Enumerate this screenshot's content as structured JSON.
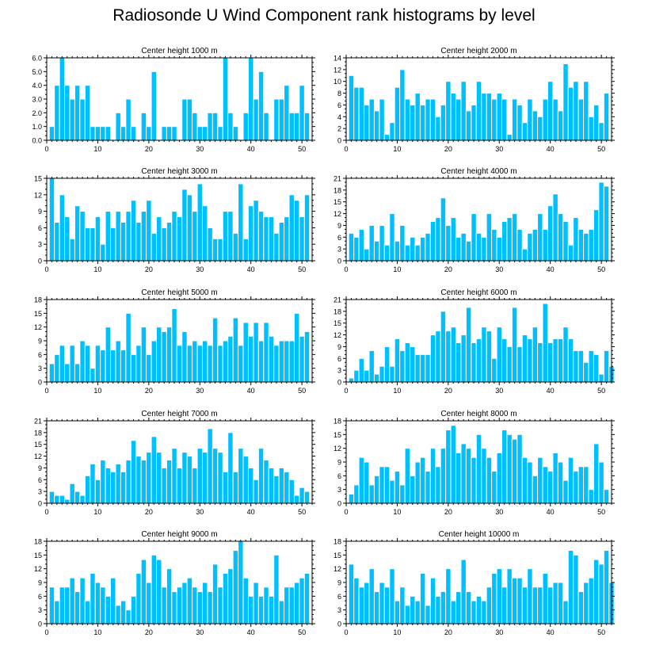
{
  "title": "Radiosonde U Wind Component rank histograms by level",
  "colors": {
    "bar": "#00BFFF",
    "bar_edge": "#ffffff",
    "axis": "#000000"
  },
  "chart_data": [
    {
      "type": "bar",
      "title": "Center height 1000 m",
      "xlim": [
        0,
        52
      ],
      "ylim": [
        0,
        6
      ],
      "yticks": [
        "0.0",
        "1.0",
        "2.0",
        "3.0",
        "4.0",
        "5.0",
        "6.0"
      ],
      "xticks": [
        0,
        10,
        20,
        30,
        40,
        50
      ],
      "values": [
        1,
        4,
        6,
        4,
        3,
        4,
        3,
        4,
        1,
        1,
        1,
        1,
        0,
        2,
        1,
        3,
        1,
        0,
        2,
        1,
        5,
        0,
        1,
        1,
        1,
        0,
        3,
        3,
        2,
        1,
        1,
        2,
        2,
        1,
        6,
        2,
        1,
        0,
        2,
        6,
        3,
        5,
        2,
        0,
        3,
        3,
        4,
        2,
        2,
        4,
        2
      ]
    },
    {
      "type": "bar",
      "title": "Center height 2000 m",
      "xlim": [
        0,
        52
      ],
      "ylim": [
        0,
        14
      ],
      "yticks": [
        "0",
        "2",
        "4",
        "6",
        "8",
        "10",
        "12",
        "14"
      ],
      "xticks": [
        0,
        10,
        20,
        30,
        40,
        50
      ],
      "values": [
        11,
        9,
        9,
        6,
        7,
        5,
        7,
        1,
        3,
        9,
        12,
        7,
        6,
        8,
        6,
        7,
        7,
        4,
        6,
        10,
        8,
        7,
        10,
        5,
        6,
        10,
        8,
        8,
        7,
        8,
        7,
        1,
        7,
        6,
        3,
        7,
        5,
        4,
        7,
        10,
        7,
        5,
        13,
        9,
        10,
        7,
        10,
        4,
        6,
        3,
        8
      ]
    },
    {
      "type": "bar",
      "title": "Center height 3000 m",
      "xlim": [
        0,
        52
      ],
      "ylim": [
        0,
        15
      ],
      "yticks": [
        "0",
        "3",
        "6",
        "9",
        "12",
        "15"
      ],
      "xticks": [
        0,
        10,
        20,
        30,
        40,
        50
      ],
      "values": [
        15,
        7,
        12,
        8,
        4,
        10,
        9,
        6,
        6,
        8,
        3,
        9,
        6,
        9,
        7,
        9,
        11,
        7,
        9,
        11,
        5,
        8,
        6,
        7,
        9,
        8,
        13,
        12,
        9,
        14,
        10,
        6,
        4,
        4,
        9,
        9,
        5,
        14,
        4,
        10,
        11,
        9,
        8,
        8,
        5,
        7,
        8,
        12,
        11,
        8,
        12
      ]
    },
    {
      "type": "bar",
      "title": "Center height 4000 m",
      "xlim": [
        0,
        52
      ],
      "ylim": [
        0,
        21
      ],
      "yticks": [
        "0",
        "3",
        "6",
        "9",
        "12",
        "15",
        "18",
        "21"
      ],
      "xticks": [
        0,
        10,
        20,
        30,
        40,
        50
      ],
      "values": [
        7,
        6,
        8,
        3,
        9,
        5,
        9,
        4,
        12,
        5,
        9,
        4,
        6,
        4,
        6,
        7,
        10,
        11,
        16,
        9,
        11,
        6,
        7,
        5,
        12,
        7,
        6,
        12,
        8,
        6,
        10,
        11,
        12,
        8,
        3,
        7,
        8,
        12,
        8,
        14,
        17,
        12,
        10,
        4,
        11,
        8,
        7,
        8,
        13,
        20,
        19
      ]
    },
    {
      "type": "bar",
      "title": "Center height 5000 m",
      "xlim": [
        0,
        52
      ],
      "ylim": [
        0,
        18
      ],
      "yticks": [
        "0",
        "3",
        "6",
        "9",
        "12",
        "15",
        "18"
      ],
      "xticks": [
        0,
        10,
        20,
        30,
        40,
        50
      ],
      "values": [
        4,
        6,
        8,
        4,
        8,
        4,
        9,
        8,
        3,
        8,
        7,
        12,
        7,
        9,
        7,
        15,
        6,
        8,
        12,
        6,
        9,
        12,
        11,
        12,
        16,
        8,
        11,
        8,
        9,
        8,
        9,
        8,
        14,
        8,
        9,
        10,
        14,
        8,
        13,
        10,
        13,
        9,
        13,
        10,
        8,
        9,
        9,
        9,
        15,
        10,
        11
      ]
    },
    {
      "type": "bar",
      "title": "Center height 6000 m",
      "xlim": [
        0,
        52
      ],
      "ylim": [
        0,
        21
      ],
      "yticks": [
        "0",
        "3",
        "6",
        "9",
        "12",
        "15",
        "18",
        "21"
      ],
      "xticks": [
        0,
        10,
        20,
        30,
        40,
        50
      ],
      "values": [
        1,
        3,
        6,
        3,
        8,
        2,
        4,
        9,
        4,
        11,
        8,
        10,
        9,
        7,
        7,
        7,
        12,
        13,
        18,
        13,
        14,
        10,
        12,
        19,
        10,
        11,
        14,
        13,
        6,
        14,
        11,
        9,
        19,
        9,
        12,
        11,
        14,
        10,
        20,
        10,
        11,
        11,
        14,
        11,
        8,
        8,
        5,
        8,
        7,
        2,
        8,
        4
      ]
    },
    {
      "type": "bar",
      "title": "Center height 7000 m",
      "xlim": [
        0,
        52
      ],
      "ylim": [
        0,
        21
      ],
      "yticks": [
        "0",
        "3",
        "6",
        "9",
        "12",
        "15",
        "18",
        "21"
      ],
      "xticks": [
        0,
        10,
        20,
        30,
        40,
        50
      ],
      "values": [
        3,
        2,
        2,
        1,
        5,
        3,
        2,
        7,
        10,
        6,
        11,
        9,
        8,
        10,
        8,
        11,
        16,
        12,
        11,
        13,
        17,
        13,
        9,
        11,
        14,
        9,
        13,
        12,
        9,
        14,
        13,
        19,
        14,
        13,
        8,
        18,
        8,
        14,
        12,
        9,
        6,
        14,
        11,
        9,
        7,
        9,
        8,
        6,
        2,
        4,
        3
      ]
    },
    {
      "type": "bar",
      "title": "Center height 8000 m",
      "xlim": [
        0,
        52
      ],
      "ylim": [
        0,
        18
      ],
      "yticks": [
        "0",
        "3",
        "6",
        "9",
        "12",
        "15",
        "18"
      ],
      "xticks": [
        0,
        10,
        20,
        30,
        40,
        50
      ],
      "values": [
        2,
        4,
        10,
        9,
        4,
        6,
        8,
        8,
        5,
        7,
        4,
        12,
        6,
        9,
        10,
        7,
        12,
        8,
        12,
        16,
        17,
        11,
        13,
        12,
        10,
        15,
        12,
        10,
        7,
        11,
        16,
        15,
        14,
        15,
        10,
        9,
        6,
        10,
        8,
        7,
        11,
        9,
        5,
        10,
        7,
        8,
        8,
        3,
        13,
        9,
        3
      ]
    },
    {
      "type": "bar",
      "title": "Center height 9000 m",
      "xlim": [
        0,
        52
      ],
      "ylim": [
        0,
        18
      ],
      "yticks": [
        "0",
        "3",
        "6",
        "9",
        "12",
        "15",
        "18"
      ],
      "xticks": [
        0,
        10,
        20,
        30,
        40,
        50
      ],
      "values": [
        8,
        5,
        8,
        8,
        10,
        7,
        10,
        5,
        11,
        9,
        8,
        6,
        10,
        4,
        5,
        3,
        6,
        11,
        14,
        9,
        15,
        14,
        8,
        12,
        7,
        8,
        9,
        10,
        8,
        7,
        9,
        7,
        13,
        8,
        11,
        12,
        16,
        18,
        10,
        6,
        9,
        6,
        8,
        6,
        15,
        5,
        8,
        8,
        9,
        10,
        11
      ]
    },
    {
      "type": "bar",
      "title": "Center height 10000 m",
      "xlim": [
        0,
        52
      ],
      "ylim": [
        0,
        18
      ],
      "yticks": [
        "0",
        "3",
        "6",
        "9",
        "12",
        "15",
        "18"
      ],
      "xticks": [
        0,
        10,
        20,
        30,
        40,
        50
      ],
      "values": [
        13,
        10,
        8,
        9,
        12,
        7,
        9,
        8,
        12,
        5,
        8,
        4,
        6,
        5,
        11,
        4,
        10,
        6,
        7,
        12,
        5,
        7,
        14,
        7,
        5,
        6,
        5,
        8,
        11,
        12,
        8,
        12,
        10,
        10,
        8,
        12,
        8,
        8,
        11,
        8,
        9,
        9,
        5,
        16,
        15,
        7,
        9,
        10,
        14,
        13,
        16,
        9
      ]
    }
  ]
}
